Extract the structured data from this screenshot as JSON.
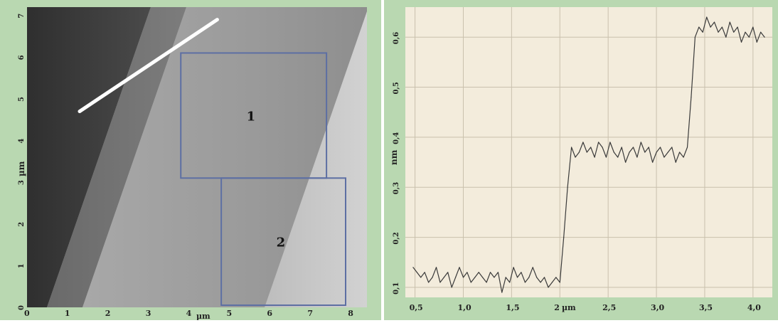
{
  "afm_image": {
    "colors": {
      "frame": "#b9d8b1",
      "line": "#ffffff",
      "box": "#5d6fa3"
    },
    "axes": {
      "x": {
        "label": "µm",
        "ticks": [
          "0",
          "1",
          "2",
          "3",
          "4",
          "5",
          "6",
          "7",
          "8"
        ],
        "range": [
          0,
          8.4
        ]
      },
      "y": {
        "label": "µm",
        "ticks": [
          "0",
          "1",
          "2",
          "3",
          "4",
          "5",
          "6",
          "7"
        ],
        "range": [
          0,
          7.2
        ]
      }
    },
    "regions": [
      {
        "label": "1",
        "x": [
          3.8,
          7.4
        ],
        "y": [
          3.1,
          6.1
        ]
      },
      {
        "label": "2",
        "x": [
          4.8,
          8.5
        ],
        "y": [
          0.0,
          3.1
        ]
      }
    ],
    "profile_line": {
      "from": [
        1.3,
        4.7
      ],
      "to": [
        4.7,
        6.9
      ]
    }
  },
  "chart_data": {
    "type": "line",
    "xlabel": "µm",
    "ylabel": "nm",
    "xlim": [
      0.4,
      4.2
    ],
    "ylim": [
      0.08,
      0.66
    ],
    "x_ticks": [
      0.5,
      1.0,
      1.5,
      2.0,
      2.5,
      3.0,
      3.5,
      4.0
    ],
    "x_tick_labels": [
      "0,5",
      "1,0",
      "1,5",
      "2",
      "2,5",
      "3,0",
      "3,5",
      "4,0"
    ],
    "y_ticks": [
      0.1,
      0.2,
      0.3,
      0.4,
      0.5,
      0.6
    ],
    "y_tick_labels": [
      "0,1",
      "0,2",
      "0,3",
      "0,4",
      "0,5",
      "0,6"
    ],
    "grid": true,
    "colors": {
      "background": "#f3ecdc",
      "frame": "#b9d8b1",
      "grid": "#c9c0ad",
      "line": "#3a3a3a"
    },
    "series": [
      {
        "x": [
          0.48,
          0.52,
          0.56,
          0.6,
          0.64,
          0.68,
          0.72,
          0.76,
          0.8,
          0.84,
          0.88,
          0.92,
          0.96,
          1.0,
          1.04,
          1.08,
          1.12,
          1.16,
          1.2,
          1.24,
          1.28,
          1.32,
          1.36,
          1.4,
          1.44,
          1.48,
          1.52,
          1.56,
          1.6,
          1.64,
          1.68,
          1.72,
          1.76,
          1.8,
          1.84,
          1.88,
          1.92,
          1.96,
          2.0,
          2.04,
          2.08,
          2.12,
          2.16,
          2.2,
          2.24,
          2.28,
          2.32,
          2.36,
          2.4,
          2.44,
          2.48,
          2.52,
          2.56,
          2.6,
          2.64,
          2.68,
          2.72,
          2.76,
          2.8,
          2.84,
          2.88,
          2.92,
          2.96,
          3.0,
          3.04,
          3.08,
          3.12,
          3.16,
          3.2,
          3.24,
          3.28,
          3.32,
          3.36,
          3.4,
          3.44,
          3.48,
          3.52,
          3.56,
          3.6,
          3.64,
          3.68,
          3.72,
          3.76,
          3.8,
          3.84,
          3.88,
          3.92,
          3.96,
          4.0,
          4.04,
          4.08,
          4.12
        ],
        "y": [
          0.14,
          0.13,
          0.12,
          0.13,
          0.11,
          0.12,
          0.14,
          0.11,
          0.12,
          0.13,
          0.1,
          0.12,
          0.14,
          0.12,
          0.13,
          0.11,
          0.12,
          0.13,
          0.12,
          0.11,
          0.13,
          0.12,
          0.13,
          0.09,
          0.12,
          0.11,
          0.14,
          0.12,
          0.13,
          0.11,
          0.12,
          0.14,
          0.12,
          0.11,
          0.12,
          0.1,
          0.11,
          0.12,
          0.11,
          0.2,
          0.3,
          0.38,
          0.36,
          0.37,
          0.39,
          0.37,
          0.38,
          0.36,
          0.39,
          0.38,
          0.36,
          0.39,
          0.37,
          0.36,
          0.38,
          0.35,
          0.37,
          0.38,
          0.36,
          0.39,
          0.37,
          0.38,
          0.35,
          0.37,
          0.38,
          0.36,
          0.37,
          0.38,
          0.35,
          0.37,
          0.36,
          0.38,
          0.48,
          0.6,
          0.62,
          0.61,
          0.64,
          0.62,
          0.63,
          0.61,
          0.62,
          0.6,
          0.63,
          0.61,
          0.62,
          0.59,
          0.61,
          0.6,
          0.62,
          0.59,
          0.61,
          0.6
        ]
      }
    ]
  }
}
